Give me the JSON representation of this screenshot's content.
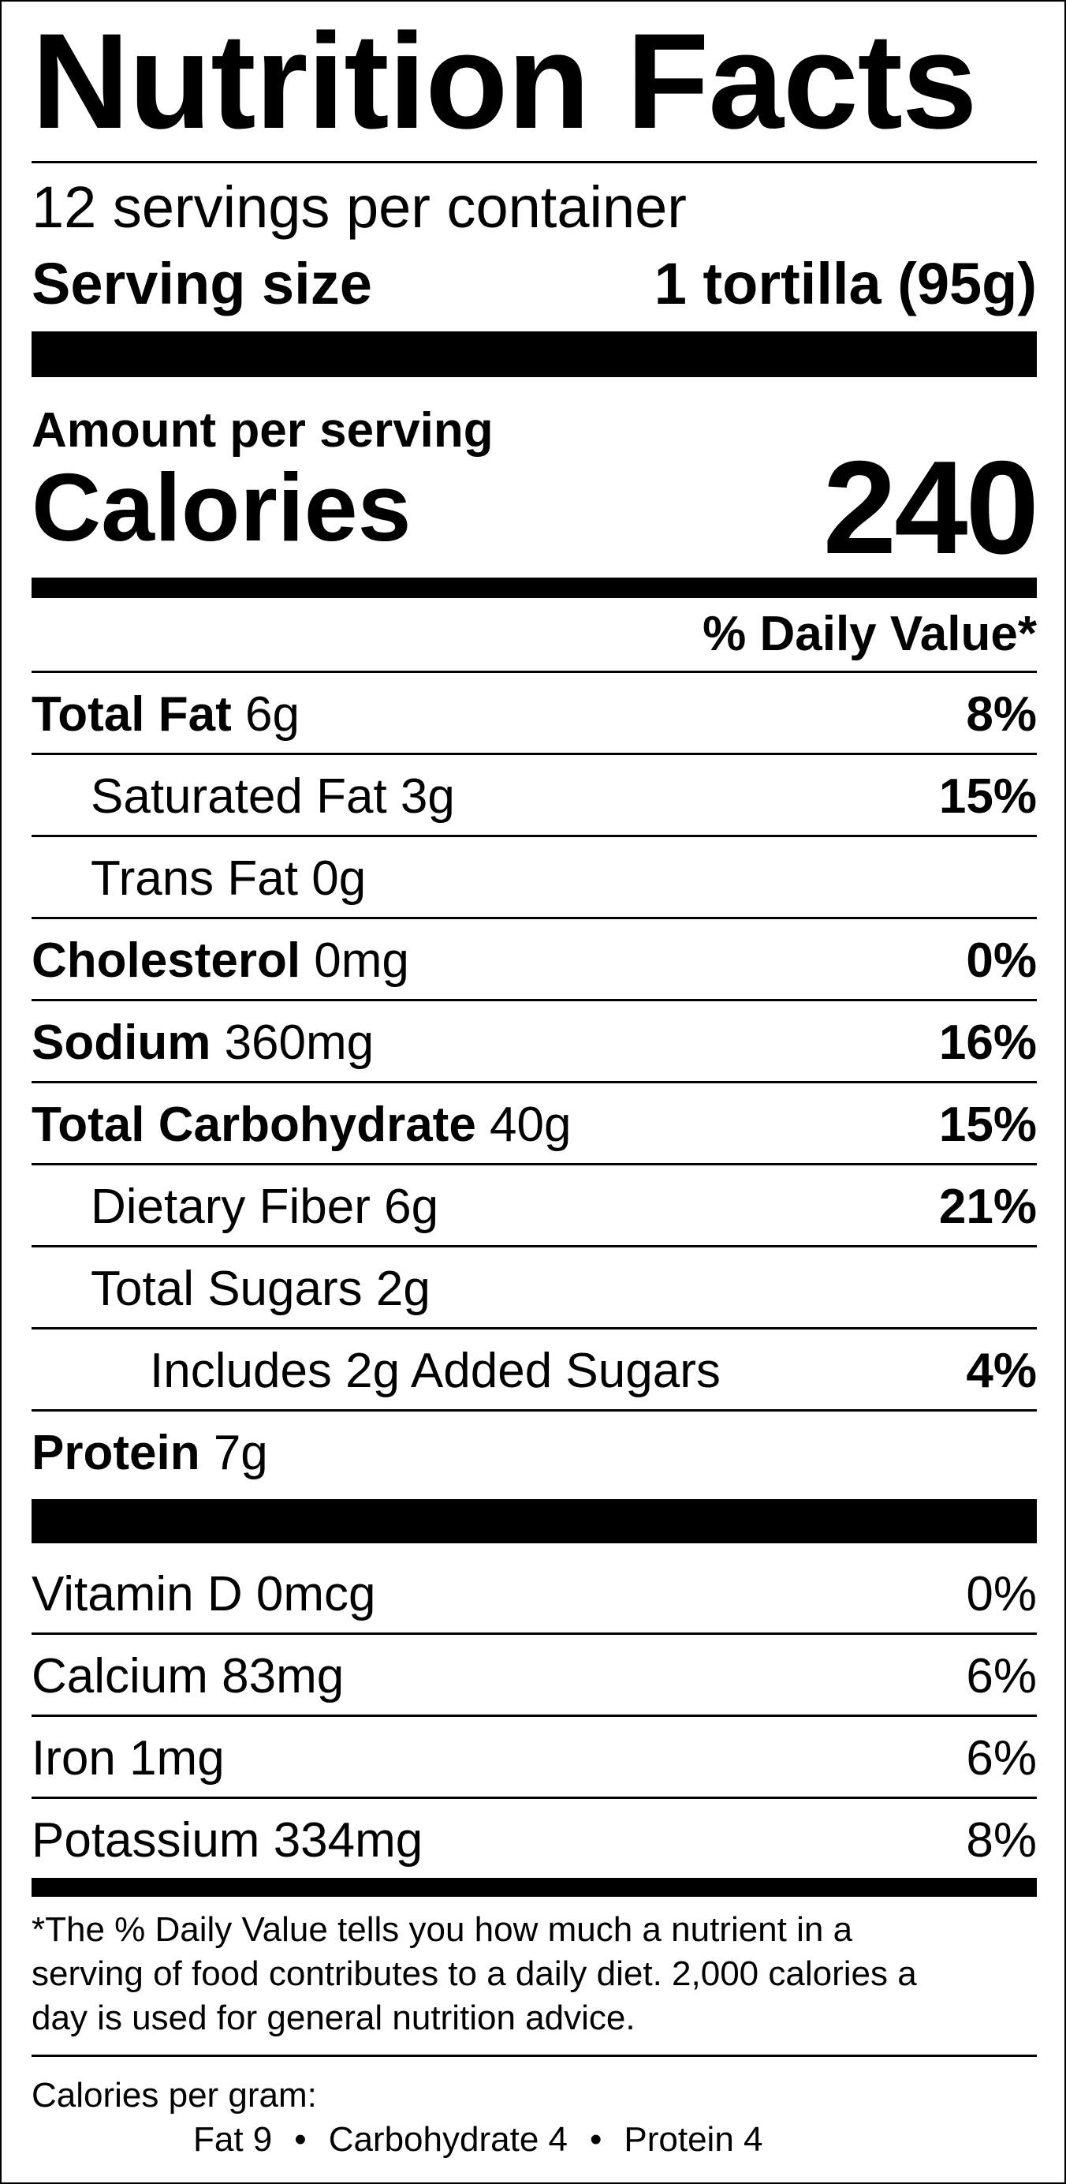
{
  "title": "Nutrition Facts",
  "servings_per_container": "12 servings per container",
  "serving_size": {
    "label": "Serving size",
    "value": "1 tortilla (95g)"
  },
  "amount_per_serving": "Amount per serving",
  "calories": {
    "label": "Calories",
    "value": "240"
  },
  "daily_value_header": "% Daily Value*",
  "nutrients": [
    {
      "name": "Total Fat",
      "amount": "6g",
      "dv": "8%",
      "bold": true,
      "indent": 0
    },
    {
      "name": "Saturated Fat",
      "amount": "3g",
      "dv": "15%",
      "bold": false,
      "indent": 1
    },
    {
      "name": "Trans Fat",
      "amount": "0g",
      "dv": "",
      "bold": false,
      "indent": 1
    },
    {
      "name": "Cholesterol",
      "amount": "0mg",
      "dv": "0%",
      "bold": true,
      "indent": 0
    },
    {
      "name": "Sodium",
      "amount": "360mg",
      "dv": "16%",
      "bold": true,
      "indent": 0
    },
    {
      "name": "Total Carbohydrate",
      "amount": "40g",
      "dv": "15%",
      "bold": true,
      "indent": 0
    },
    {
      "name": "Dietary Fiber",
      "amount": "6g",
      "dv": "21%",
      "bold": false,
      "indent": 1
    },
    {
      "name": "Total Sugars",
      "amount": "2g",
      "dv": "",
      "bold": false,
      "indent": 1
    },
    {
      "name": "Includes 2g Added Sugars",
      "amount": "",
      "dv": "4%",
      "bold": false,
      "indent": 2
    },
    {
      "name": "Protein",
      "amount": "7g",
      "dv": "",
      "bold": true,
      "indent": 0
    }
  ],
  "vitamins": [
    {
      "name": "Vitamin D",
      "amount": "0mcg",
      "dv": "0%"
    },
    {
      "name": "Calcium",
      "amount": "83mg",
      "dv": "6%"
    },
    {
      "name": "Iron",
      "amount": "1mg",
      "dv": "6%"
    },
    {
      "name": "Potassium",
      "amount": "334mg",
      "dv": "8%"
    }
  ],
  "footnote_lines": [
    "*The % Daily Value tells you how much a nutrient in a",
    "serving of food contributes to a daily diet. 2,000 calories a",
    "day is used for general nutrition advice."
  ],
  "calories_per_gram": {
    "label": "Calories per gram:",
    "fat": "Fat 9",
    "carbohydrate": "Carbohydrate 4",
    "protein": "Protein 4",
    "separator": "•"
  }
}
